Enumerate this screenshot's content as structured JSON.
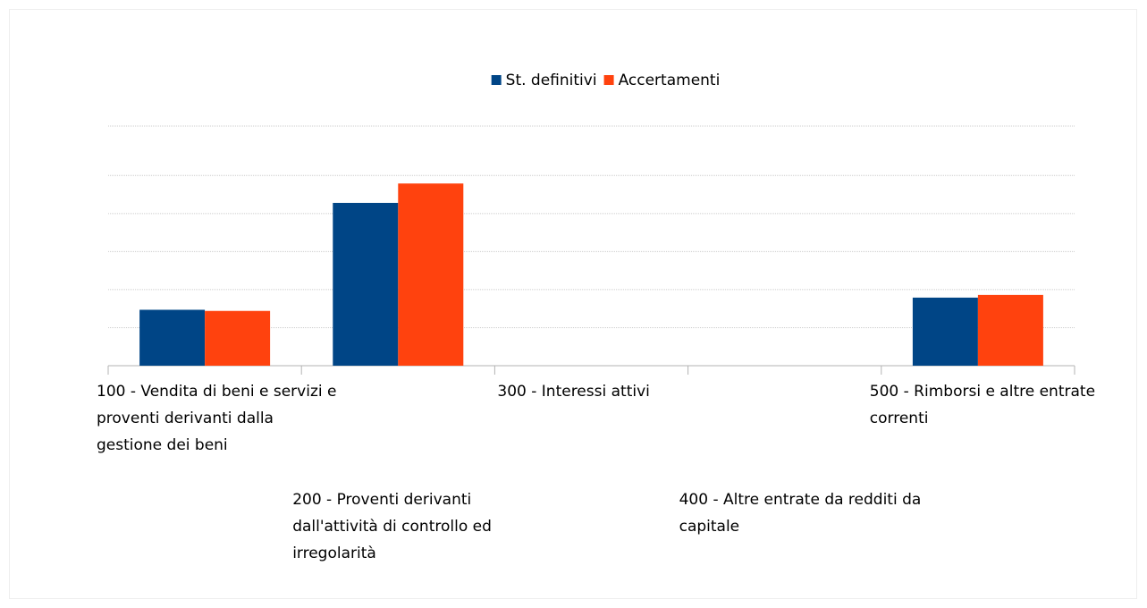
{
  "chart_data": {
    "type": "bar",
    "categories": [
      "100 - Vendita di beni e servizi e proventi derivanti dalla gestione dei beni",
      "200 - Proventi derivanti dall'attività di controllo ed irregolarità",
      "300 - Interessi attivi",
      "400 - Altre entrate da redditi da capitale",
      "500 - Rimborsi e altre entrate correnti"
    ],
    "series": [
      {
        "name": "St. definitivi",
        "color": "#004586",
        "values": [
          1.47,
          4.28,
          0,
          0,
          1.79
        ]
      },
      {
        "name": "Accertamenti",
        "color": "#ff420e",
        "values": [
          1.44,
          4.79,
          0,
          0,
          1.86
        ]
      }
    ],
    "ylim": [
      0,
      6.3
    ],
    "yticks": [
      0,
      1,
      2,
      3,
      4,
      5
    ],
    "grid": true,
    "legend": "top"
  }
}
